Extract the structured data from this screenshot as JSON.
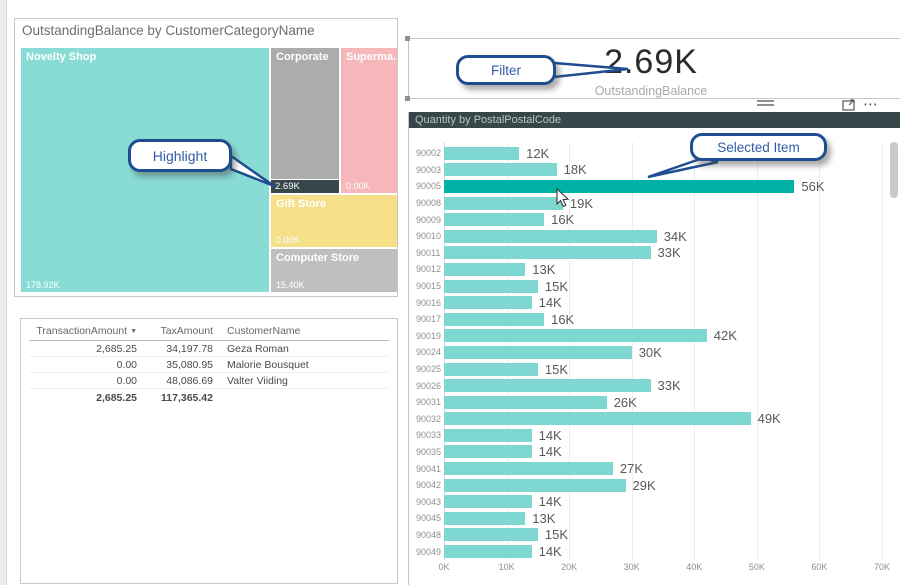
{
  "icons": {
    "sort_descending": "▼",
    "more_options": "⋯"
  },
  "treemap": {
    "title": "OutstandingBalance by CustomerCategoryName",
    "highlight_color": "#374649",
    "tiles": [
      {
        "name": "Novelty Shop",
        "value": "178.92K",
        "color": "#89DCD5"
      },
      {
        "name": "Corporate",
        "value": "2.69K",
        "color": "#ACACAC"
      },
      {
        "name": "Superma...",
        "value": "0.00K",
        "color": "#F6B7BB"
      },
      {
        "name": "Gift Store",
        "value": "0.00K",
        "color": "#F5E089"
      },
      {
        "name": "Computer Store",
        "value": "15.40K",
        "color": "#BFBFBF"
      }
    ],
    "highlight_value": "2.69K"
  },
  "annotations": {
    "highlight": "Highlight",
    "filter": "Filter",
    "selected_item": "Selected Item"
  },
  "table": {
    "columns": [
      "TransactionAmount",
      "TaxAmount",
      "CustomerName"
    ],
    "rows": [
      [
        "2,685.25",
        "34,197.78",
        "Geza Roman"
      ],
      [
        "0.00",
        "35,080.95",
        "Malorie Bousquet"
      ],
      [
        "0.00",
        "48,086.69",
        "Valter Viiding"
      ]
    ],
    "total": [
      "2,685.25",
      "117,365.42",
      ""
    ]
  },
  "card": {
    "value": "2.69K",
    "label": "OutstandingBalance"
  },
  "chart_data": {
    "type": "bar",
    "orientation": "horizontal",
    "title": "Quantity by PostalPostalCode",
    "categories": [
      "90002",
      "90003",
      "90005",
      "90008",
      "90009",
      "90010",
      "90011",
      "90012",
      "90015",
      "90016",
      "90017",
      "90019",
      "90024",
      "90025",
      "90026",
      "90031",
      "90032",
      "90033",
      "90035",
      "90041",
      "90042",
      "90043",
      "90045",
      "90048",
      "90049"
    ],
    "values": [
      12,
      18,
      56,
      19,
      16,
      34,
      33,
      13,
      15,
      14,
      16,
      42,
      30,
      15,
      33,
      26,
      49,
      14,
      14,
      27,
      29,
      14,
      13,
      15,
      14
    ],
    "value_labels": [
      "12K",
      "18K",
      "56K",
      "19K",
      "16K",
      "34K",
      "33K",
      "13K",
      "15K",
      "14K",
      "16K",
      "42K",
      "30K",
      "15K",
      "33K",
      "26K",
      "49K",
      "14K",
      "14K",
      "27K",
      "29K",
      "14K",
      "13K",
      "15K",
      "14K"
    ],
    "value_unit": "K",
    "selected_category": "90005",
    "xlim": [
      0,
      70
    ],
    "x_ticks": [
      "0K",
      "10K",
      "20K",
      "30K",
      "40K",
      "50K",
      "60K",
      "70K"
    ],
    "grid": true,
    "colors": {
      "bar": "#7ED8D1",
      "selected_bar": "#01B1A5"
    }
  }
}
